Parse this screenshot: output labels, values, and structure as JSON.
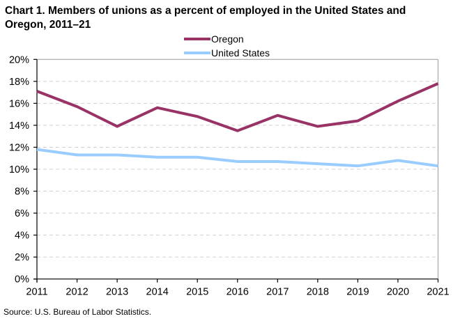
{
  "title_line1": "Chart 1. Members of unions as a percent of employed  in the United States and",
  "title_line2": "Oregon, 2011–21",
  "source": "Source: U.S. Bureau  of Labor  Statistics.",
  "chart_data": {
    "type": "line",
    "title": "Chart 1. Members of unions as a percent of employed in the United States and Oregon, 2011–21",
    "xlabel": "",
    "ylabel": "",
    "x": [
      2011,
      2012,
      2013,
      2014,
      2015,
      2016,
      2017,
      2018,
      2019,
      2020,
      2021
    ],
    "x_tick_labels": [
      "2011",
      "2012",
      "2013",
      "2014",
      "2015",
      "2016",
      "2017",
      "2018",
      "2019",
      "2020",
      "2021"
    ],
    "ylim": [
      0,
      20
    ],
    "y_ticks": [
      0,
      2,
      4,
      6,
      8,
      10,
      12,
      14,
      16,
      18,
      20
    ],
    "y_tick_labels": [
      "0%",
      "2%",
      "4%",
      "6%",
      "8%",
      "10%",
      "12%",
      "14%",
      "16%",
      "18%",
      "20%"
    ],
    "grid": "horizontal dashed",
    "legend_position": "top-center",
    "series": [
      {
        "name": "Oregon",
        "color": "#993366",
        "values": [
          17.1,
          15.7,
          13.9,
          15.6,
          14.8,
          13.5,
          14.9,
          13.9,
          14.4,
          16.2,
          17.8
        ]
      },
      {
        "name": "United States",
        "color": "#99ccff",
        "values": [
          11.8,
          11.3,
          11.3,
          11.1,
          11.1,
          10.7,
          10.7,
          10.5,
          10.3,
          10.8,
          10.3
        ]
      }
    ]
  }
}
